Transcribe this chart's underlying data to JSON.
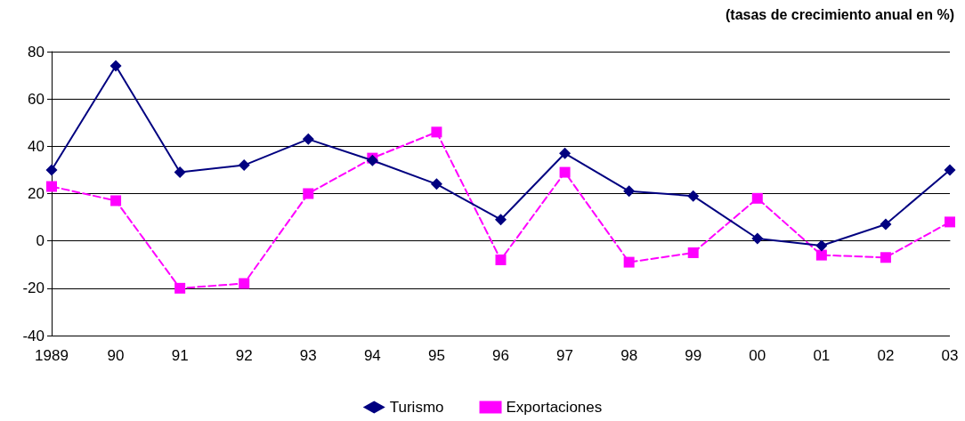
{
  "chart_data": {
    "type": "line",
    "annotations": [
      "(tasas de crecimiento anual en %)"
    ],
    "categories": [
      "1989",
      "90",
      "91",
      "92",
      "93",
      "94",
      "95",
      "96",
      "97",
      "98",
      "99",
      "00",
      "01",
      "02",
      "03"
    ],
    "series": [
      {
        "name": "Turismo",
        "color": "#000080",
        "marker": "diamond",
        "line_style": "solid",
        "values": [
          30,
          74,
          29,
          32,
          43,
          34,
          24,
          9,
          37,
          21,
          19,
          1,
          -2,
          7,
          30
        ]
      },
      {
        "name": "Exportaciones",
        "color": "#ff00ff",
        "marker": "square",
        "line_style": "dashed",
        "values": [
          23,
          17,
          -20,
          -18,
          20,
          35,
          46,
          -8,
          29,
          -9,
          -5,
          18,
          -6,
          -7,
          8
        ]
      }
    ],
    "ylim": [
      -40,
      80
    ],
    "yticks": [
      -40,
      -20,
      0,
      20,
      40,
      60,
      80
    ],
    "grid": "y",
    "legend": "bottom"
  }
}
